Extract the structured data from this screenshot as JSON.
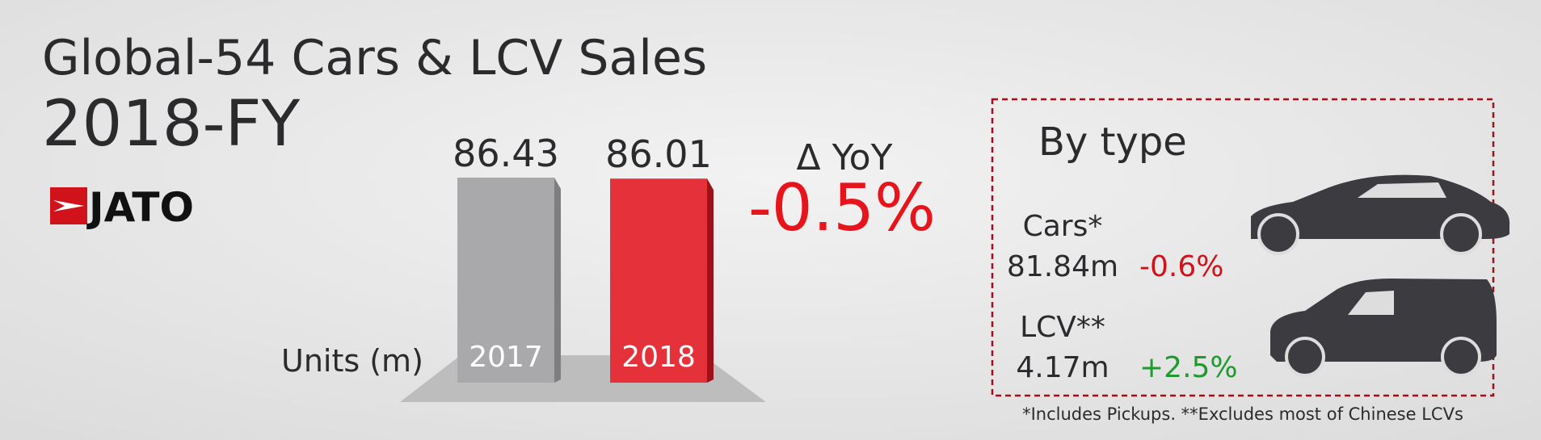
{
  "chart_data": {
    "type": "bar",
    "title": "Global-54 Cars & LCV Sales",
    "subtitle": "2018-FY",
    "categories": [
      "2017",
      "2018"
    ],
    "values": [
      86.43,
      86.01
    ],
    "colors": [
      "#a9a9ab",
      "#e5323a"
    ],
    "y_label": "Units (m)"
  },
  "logo": "JATO",
  "yoy": {
    "label": "Δ YoY",
    "value": "-0.5%"
  },
  "by_type": {
    "title": "By type",
    "rows": [
      {
        "name": "Cars*",
        "volume": "81.84m",
        "change": "-0.6%",
        "color": "#d0121b"
      },
      {
        "name": "LCV**",
        "volume": "4.17m",
        "change": "+2.5%",
        "color": "#1f9a2e"
      }
    ]
  },
  "footnote": "*Includes Pickups. **Excludes most of Chinese LCVs"
}
